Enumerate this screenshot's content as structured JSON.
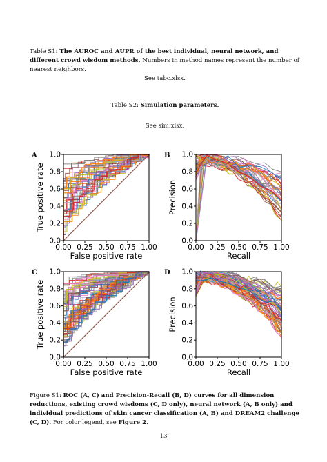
{
  "table1": {
    "prefix": "Table S1:",
    "bold": "The AUROC and AUPR of the best individual, neural network, and different crowd wisdom methods.",
    "rest": "Numbers in method names represent the number of nearest neighbors.",
    "see": "See tabc.xlsx."
  },
  "table2": {
    "prefix": "Table S2:",
    "bold": "Simulation parameters.",
    "see": "See sim.xlsx."
  },
  "panels": [
    {
      "letter": "A",
      "type": "roc",
      "xlabel": "False positive rate",
      "ylabel": "True positive rate",
      "ticks": [
        "0.00",
        "0.25",
        "0.50",
        "0.75",
        "1.00"
      ],
      "yticks": [
        "0.0",
        "0.2",
        "0.4",
        "0.6",
        "0.8",
        "1.0"
      ]
    },
    {
      "letter": "B",
      "type": "pr",
      "xlabel": "Recall",
      "ylabel": "Precision",
      "ticks": [
        "0.00",
        "0.25",
        "0.50",
        "0.75",
        "1.00"
      ],
      "yticks": [
        "0.0",
        "0.2",
        "0.4",
        "0.6",
        "0.8",
        "1.0"
      ]
    },
    {
      "letter": "C",
      "type": "roc",
      "xlabel": "False positive rate",
      "ylabel": "True positive rate",
      "ticks": [
        "0.00",
        "0.25",
        "0.50",
        "0.75",
        "1.00"
      ],
      "yticks": [
        "0.0",
        "0.2",
        "0.4",
        "0.6",
        "0.8",
        "1.0"
      ]
    },
    {
      "letter": "D",
      "type": "pr",
      "xlabel": "Recall",
      "ylabel": "Precision",
      "ticks": [
        "0.00",
        "0.25",
        "0.50",
        "0.75",
        "1.00"
      ],
      "yticks": [
        "0.0",
        "0.2",
        "0.4",
        "0.6",
        "0.8",
        "1.0"
      ]
    }
  ],
  "colors": [
    "#d62728",
    "#ff7f0e",
    "#1f77b4",
    "#e377c2",
    "#9467bd",
    "#8c564b",
    "#7f7f7f",
    "#bcbd22",
    "#aaaaaa"
  ],
  "figure": {
    "prefix": "Figure S1:",
    "bold": "ROC (A, C) and Precision-Recall (B, D) curves for all dimension reductions, existing crowd wisdoms (C, D only), neural network (A, B only) and individual predictions of skin cancer classification (A, B) and DREAM2 challenge (C, D).",
    "rest_a": "For color legend, see",
    "ref": "Figure 2",
    "rest_b": "."
  },
  "page_number": "13"
}
